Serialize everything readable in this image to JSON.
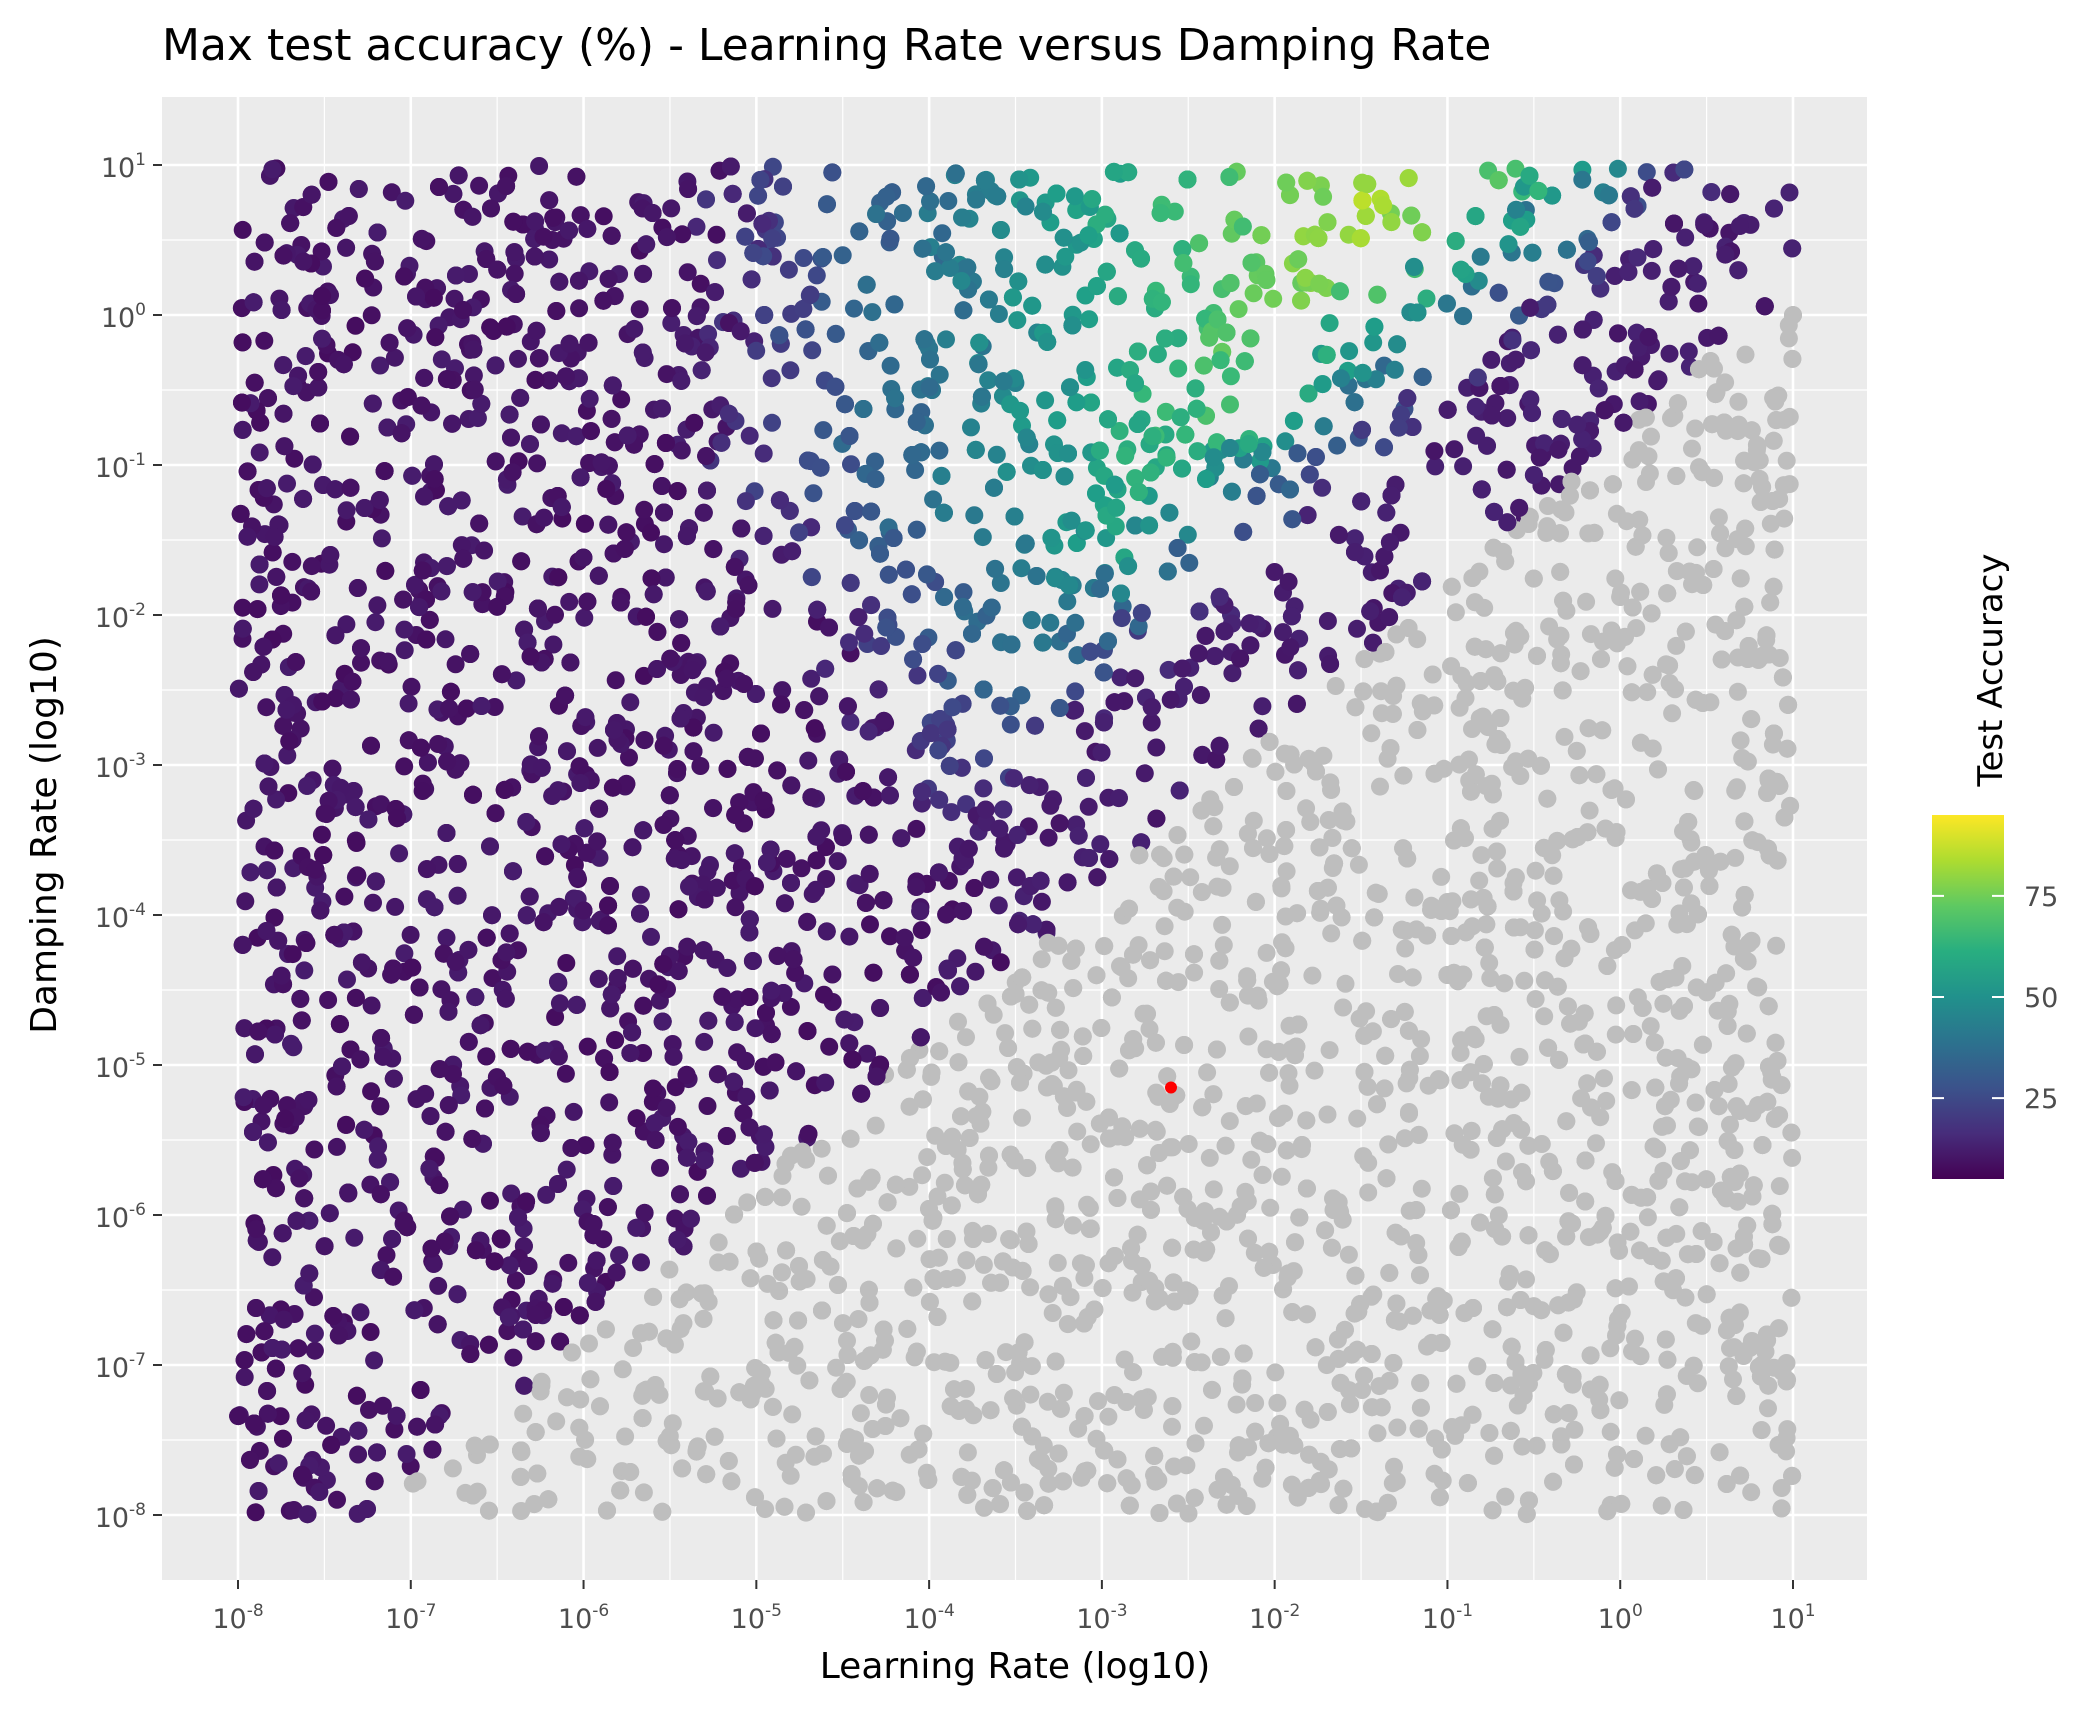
{
  "chart_data": {
    "type": "scatter",
    "title": "Max test accuracy (%) - Learning Rate versus Damping Rate",
    "xlabel": "Learning Rate (log10)",
    "ylabel": "Damping Rate (log10)",
    "x_scale": "log10",
    "y_scale": "log10",
    "x_exponent_range": [
      -8,
      1
    ],
    "y_exponent_range": [
      -8,
      1
    ],
    "x_tick_base": "10",
    "x_tick_exponents": [
      "-8",
      "-7",
      "-6",
      "-5",
      "-4",
      "-3",
      "-2",
      "-1",
      "0",
      "1"
    ],
    "y_tick_base": "10",
    "y_tick_exponents": [
      "-8",
      "-7",
      "-6",
      "-5",
      "-4",
      "-3",
      "-2",
      "-1",
      "0",
      "1"
    ],
    "legend": {
      "title": "Test Accuracy",
      "position": "right",
      "colormap": "viridis",
      "range": [
        5,
        95
      ],
      "ticks": [
        "25",
        "50",
        "75"
      ],
      "tick_values": [
        25,
        50,
        75
      ],
      "na_color": "#bebebe"
    },
    "background": "#ebebeb",
    "grid": true,
    "highlight_point": {
      "x_exp": -2.6,
      "y_exp": -5.15,
      "color": "#ff0000"
    },
    "point_count_approx": 6500,
    "note_regions": [
      {
        "region": "low learning rate or high damping",
        "accuracy": "~10% (dark purple)"
      },
      {
        "region": "central band, learning rate 1e-4 to 1e-1",
        "accuracy": "~90-95% (yellow)"
      },
      {
        "region": "learning rate > 1e-1, low damping",
        "accuracy": "diverged / ~10% or missing (grey)"
      }
    ]
  }
}
